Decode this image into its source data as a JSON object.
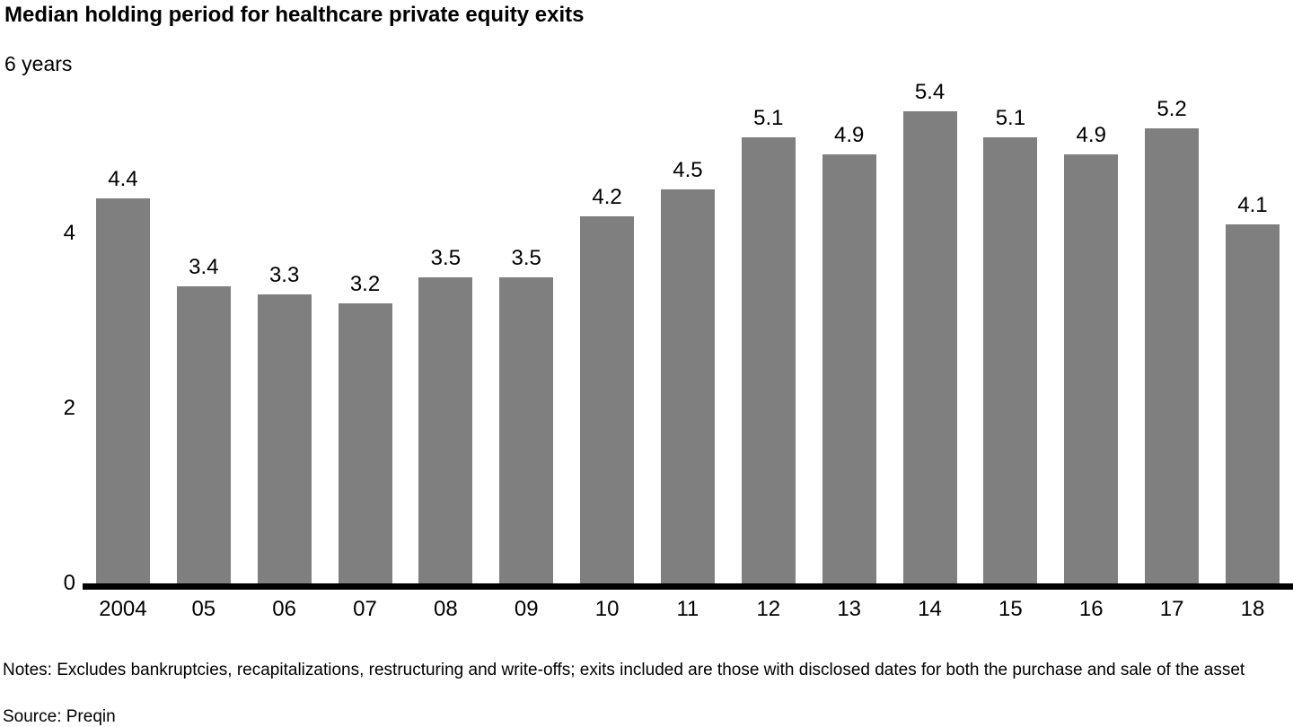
{
  "chart": {
    "title": "Median holding period for healthcare private equity exits",
    "y_axis_top_label": "6 years"
  },
  "chart_data": {
    "type": "bar",
    "title": "Median holding period for healthcare private equity exits",
    "unit": "years",
    "categories": [
      "2004",
      "05",
      "06",
      "07",
      "08",
      "09",
      "10",
      "11",
      "12",
      "13",
      "14",
      "15",
      "16",
      "17",
      "18"
    ],
    "values": [
      4.4,
      3.4,
      3.3,
      3.2,
      3.5,
      3.5,
      4.2,
      4.5,
      5.1,
      4.9,
      5.4,
      5.1,
      4.9,
      5.2,
      4.1
    ],
    "ylabel": "6 years",
    "xlabel": "",
    "ylim": [
      0,
      6
    ],
    "yticks": [
      4,
      2,
      0
    ],
    "grid": false,
    "legend": false,
    "bar_color": "#7f7f7f",
    "axis_color": "#000000",
    "value_labels_shown": true
  },
  "footer": {
    "notes": "Notes: Excludes bankruptcies, recapitalizations, restructuring and write-offs; exits included are those with disclosed dates for both the purchase and sale of the asset",
    "source": "Source: Preqin"
  }
}
